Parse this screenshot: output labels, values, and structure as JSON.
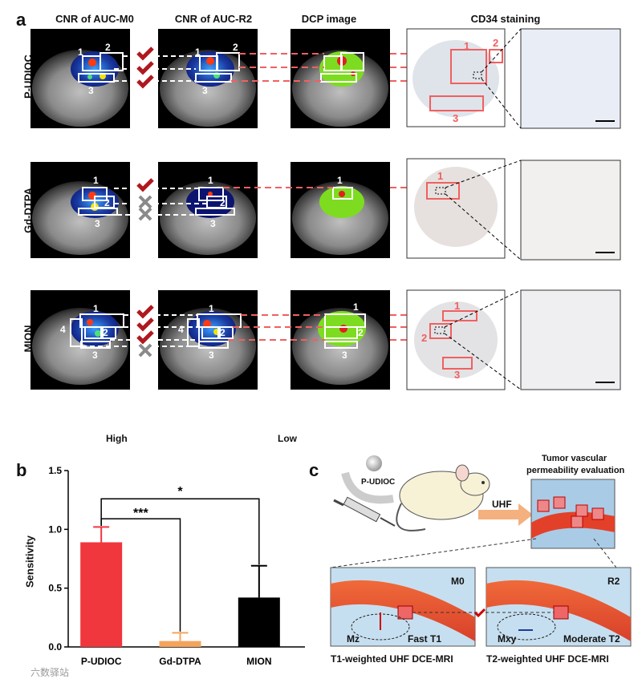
{
  "panel_labels": {
    "a": "a",
    "b": "b",
    "c": "c"
  },
  "panel_a": {
    "columns": [
      "CNR of AUC-M0",
      "CNR of AUC-R2",
      "DCP image",
      "CD34 staining"
    ],
    "rows": [
      "P-UDIOC",
      "Gd-DTPA",
      "MION"
    ],
    "region_numbers": {
      "p_m0": [
        "1",
        "2",
        "3"
      ],
      "p_r2": [
        "1",
        "2",
        "3"
      ],
      "p_stain": [
        "1",
        "2",
        "3"
      ],
      "g_m0": [
        "1",
        "2",
        "3"
      ],
      "g_r2": [
        "1",
        "2",
        "3"
      ],
      "g_dcp": [
        "1"
      ],
      "g_stain": [
        "1"
      ],
      "m_m0": [
        "1",
        "2",
        "3",
        "4"
      ],
      "m_r2": [
        "1",
        "2",
        "3",
        "4"
      ],
      "m_dcp": [
        "1",
        "2",
        "3"
      ],
      "m_stain": [
        "1",
        "2",
        "3"
      ]
    },
    "colorbar": {
      "high": "High",
      "low": "Low"
    },
    "marks": {
      "P-UDIOC": [
        "check",
        "check",
        "check"
      ],
      "Gd-DTPA": [
        "check",
        "cross",
        "cross"
      ],
      "MION": [
        "check",
        "check",
        "check",
        "cross"
      ]
    }
  },
  "chart_data": {
    "type": "bar",
    "categories": [
      "P-UDIOC",
      "Gd-DTPA",
      "MION"
    ],
    "values": [
      0.89,
      0.05,
      0.42
    ],
    "errors": [
      0.13,
      0.07,
      0.27
    ],
    "colors": [
      "#f0373d",
      "#f5a35c",
      "#000000"
    ],
    "ylabel": "Sensitivity",
    "ylim": [
      0,
      1.5
    ],
    "yticks": [
      "0.0",
      "0.5",
      "1.0",
      "1.5"
    ],
    "significance": [
      {
        "from": "P-UDIOC",
        "to": "MION",
        "label": "*"
      },
      {
        "from": "P-UDIOC",
        "to": "Gd-DTPA",
        "label": "***"
      }
    ]
  },
  "panel_c": {
    "agent_label": "P-UDIOC",
    "uhf_label": "UHF",
    "title_line1": "Tumor vascular",
    "title_line2": "permeability evaluation",
    "m0_label": "M0",
    "r2_label": "R2",
    "mz_label": "Mz",
    "mxy_label": "Mxy",
    "fast_label": "Fast T1",
    "moderate_label": "Moderate T2",
    "t1_caption": "T1-weighted UHF DCE-MRI",
    "t2_caption": "T2-weighted UHF DCE-MRI"
  },
  "watermark": "六数驿站"
}
